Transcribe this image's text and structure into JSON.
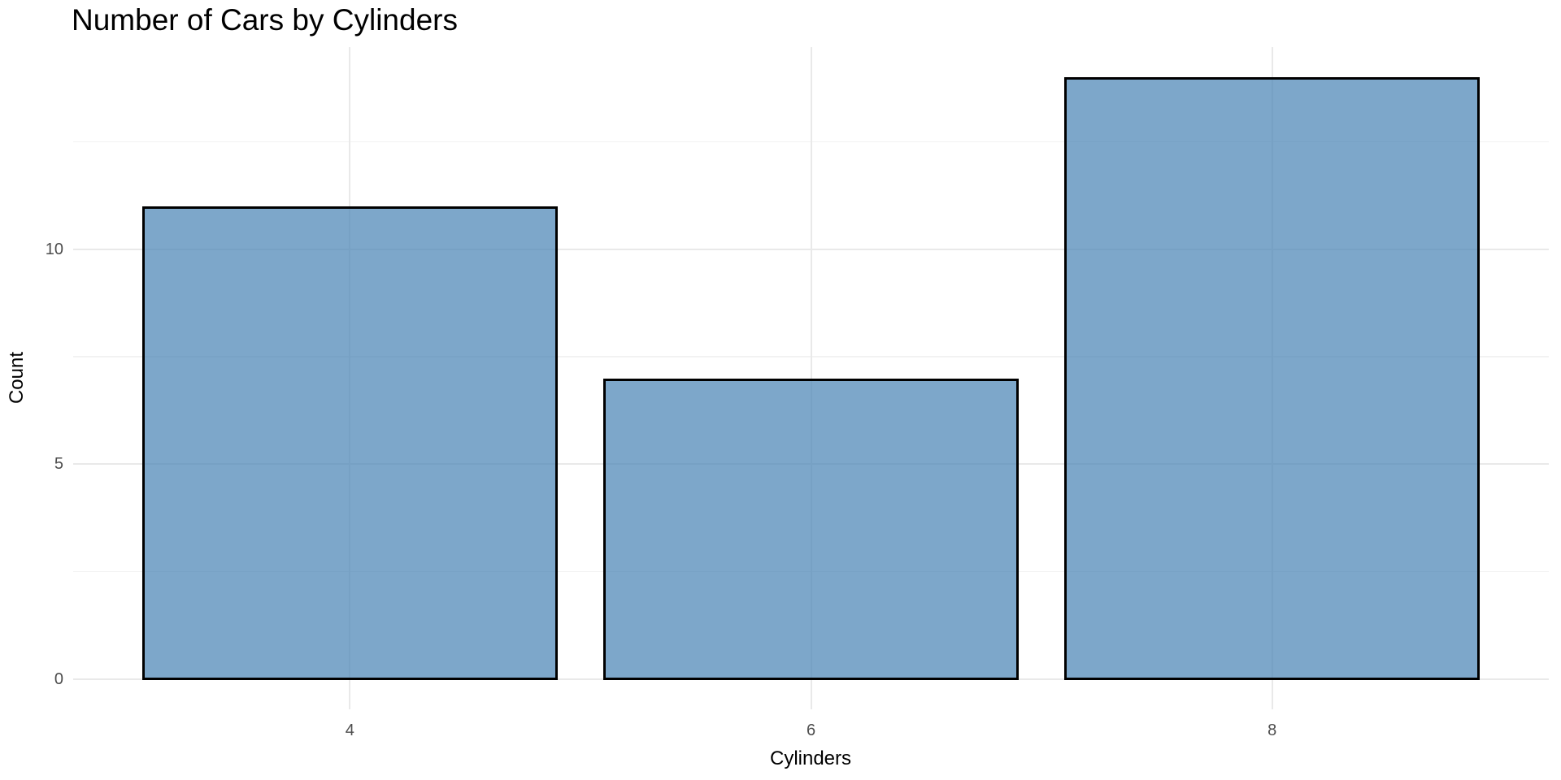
{
  "chart_data": {
    "type": "bar",
    "title": "Number of Cars by Cylinders",
    "xlabel": "Cylinders",
    "ylabel": "Count",
    "categories": [
      "4",
      "6",
      "8"
    ],
    "values": [
      11,
      7,
      14
    ],
    "ytick_values": [
      0,
      5,
      10
    ],
    "ytick_labels": [
      "0",
      "5",
      "10"
    ],
    "yminor_values": [
      2.5,
      7.5,
      12.5
    ],
    "ylim": [
      -0.7,
      14.7
    ],
    "grid": "major and minor horizontal lines, major vertical line at each category, no axis lines, white background",
    "legend_position": "none",
    "colors": {
      "bar_fill": "rgba(70,130,180,0.7)",
      "bar_fill_flat_hex": "#77a7ca",
      "bar_border": "#000000",
      "grid_major": "#e9e9e9",
      "grid_minor": "#f2f2f2",
      "tick_label_text": "#4d4d4d",
      "axis_title_text": "#000000",
      "title_text": "#000000",
      "background": "#ffffff"
    }
  }
}
